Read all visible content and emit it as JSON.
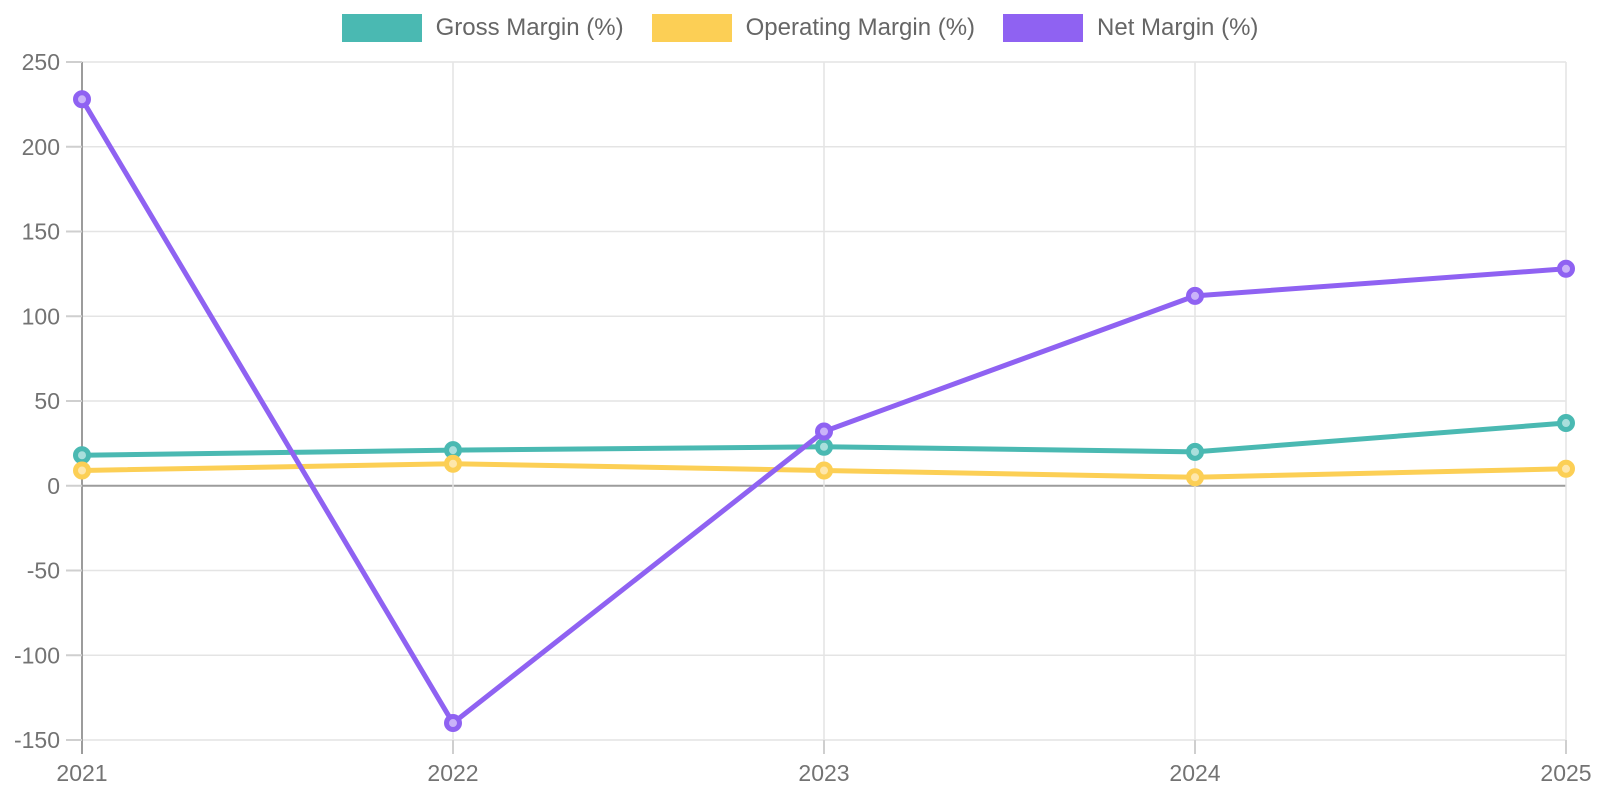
{
  "chart": {
    "background_color": "#ffffff",
    "grid_color": "#e4e4e4",
    "axis_color": "#9c9c9c",
    "tick_mark_color": "#cfcfcf",
    "tick_text_color": "#737373",
    "legend_text_color": "#666666"
  },
  "chart_data": {
    "type": "line",
    "title": "",
    "xlabel": "",
    "ylabel": "",
    "categories": [
      "2021",
      "2022",
      "2023",
      "2024",
      "2025"
    ],
    "series": [
      {
        "name": "Gross Margin (%)",
        "color": "#4ab9b2",
        "marker_fill": "#a9dfdc",
        "values": [
          18,
          21,
          23,
          20,
          37
        ]
      },
      {
        "name": "Operating Margin (%)",
        "color": "#fccf55",
        "marker_fill": "#fee7ac",
        "values": [
          9,
          13,
          9,
          5,
          10
        ]
      },
      {
        "name": "Net Margin (%)",
        "color": "#8f62f2",
        "marker_fill": "#cab3f9",
        "values": [
          228,
          -140,
          32,
          112,
          128
        ]
      }
    ],
    "ylim": [
      -150,
      250
    ],
    "yticks": [
      250,
      200,
      150,
      100,
      50,
      0,
      -50,
      -100,
      -150
    ],
    "zero_line": 0,
    "grid": true,
    "legend_position": "top"
  }
}
